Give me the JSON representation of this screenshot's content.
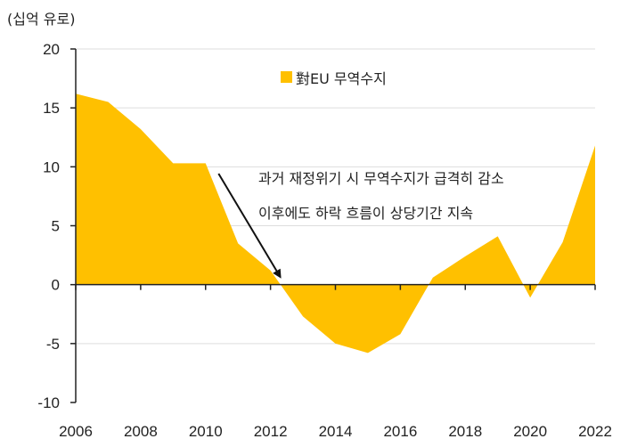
{
  "chart_data": {
    "type": "area",
    "unit_label": "(십억 유로)",
    "x": [
      2006,
      2007,
      2008,
      2009,
      2010,
      2011,
      2012,
      2013,
      2014,
      2015,
      2016,
      2017,
      2018,
      2019,
      2020,
      2021,
      2022
    ],
    "series": [
      {
        "name": "對EU 무역수지",
        "color": "#FFC000",
        "values": [
          16.2,
          15.5,
          13.2,
          10.3,
          10.3,
          3.5,
          1.2,
          -2.7,
          -5.0,
          -5.8,
          -4.2,
          0.6,
          2.4,
          4.1,
          -1.1,
          3.6,
          11.8
        ]
      }
    ],
    "xlim": [
      2006,
      2022
    ],
    "ylim": [
      -10,
      20
    ],
    "x_ticks": [
      "2006",
      "2008",
      "2010",
      "2012",
      "2014",
      "2016",
      "2018",
      "2020",
      "2022"
    ],
    "y_ticks": [
      "20",
      "15",
      "10",
      "5",
      "0",
      "-5",
      "-10"
    ],
    "grid": "horizontal",
    "legend": "top-center",
    "annotation": {
      "lines": [
        "과거 재정위기 시 무역수지가 급격히 감소",
        "이후에도 하락 흐름이 상당기간 지속"
      ],
      "arrow_from_year": 2010.4,
      "arrow_to_year": 2012.3
    }
  }
}
